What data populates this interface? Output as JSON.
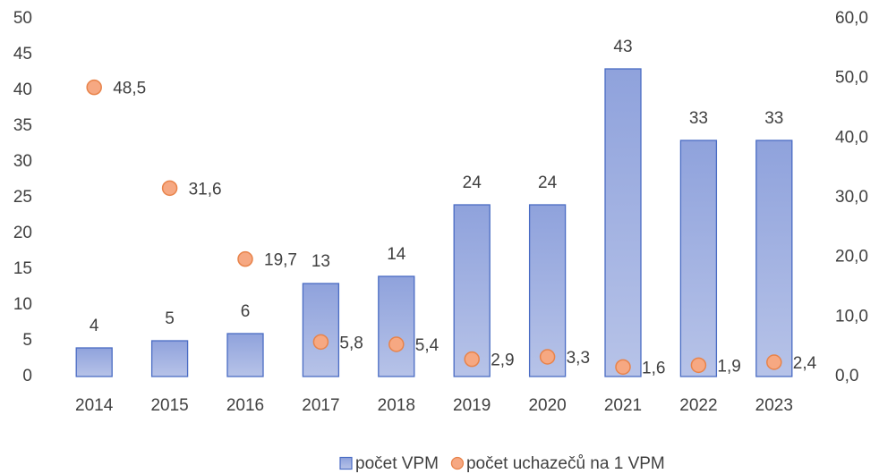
{
  "chart_data": {
    "type": "bar",
    "categories": [
      "2014",
      "2015",
      "2016",
      "2017",
      "2018",
      "2019",
      "2020",
      "2021",
      "2022",
      "2023"
    ],
    "series": [
      {
        "name": "počet VPM",
        "type": "bar",
        "color": "#a3b3e2",
        "values": [
          4,
          5,
          6,
          13,
          14,
          24,
          24,
          43,
          33,
          33
        ]
      },
      {
        "name": "počet uchazečů na 1 VPM",
        "type": "scatter",
        "axis": "y2",
        "color": "#f6a882",
        "values": [
          48.5,
          31.6,
          19.7,
          5.8,
          5.4,
          2.9,
          3.3,
          1.6,
          1.9,
          2.4
        ],
        "value_labels": [
          "48,5",
          "31,6",
          "19,7",
          "5,8",
          "5,4",
          "2,9",
          "3,3",
          "1,6",
          "1,9",
          "2,4"
        ]
      }
    ],
    "ylim": [
      0,
      50
    ],
    "yticks": [
      0,
      5,
      10,
      15,
      20,
      25,
      30,
      35,
      40,
      45,
      50
    ],
    "y2lim": [
      0,
      60
    ],
    "y2ticks": [
      {
        "value": 0,
        "label": "0,0"
      },
      {
        "value": 10,
        "label": "10,0"
      },
      {
        "value": 20,
        "label": "20,0"
      },
      {
        "value": 30,
        "label": "30,0"
      },
      {
        "value": 40,
        "label": "40,0"
      },
      {
        "value": 50,
        "label": "50,0"
      },
      {
        "value": 60,
        "label": "60,0"
      }
    ],
    "grid": false,
    "legend": "bottom"
  }
}
